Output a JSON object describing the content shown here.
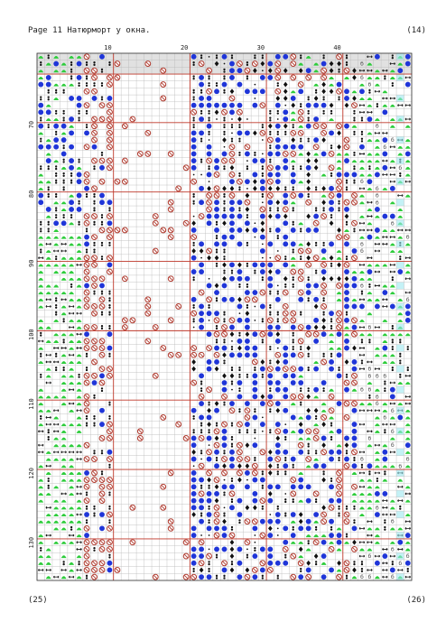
{
  "header": {
    "left": "Page 11  Натюрморт у окна.",
    "right": "(14)"
  },
  "footer": {
    "left": "(25)",
    "right": "(26)"
  },
  "grid": {
    "columns_total": 49,
    "rows_total": 76,
    "column_tick_labels": [
      "10",
      "20",
      "30",
      "40"
    ],
    "column_tick_values": [
      10,
      20,
      30,
      40
    ],
    "row_tick_labels": [
      "70",
      "80",
      "90",
      "100",
      "110",
      "120",
      "130"
    ],
    "row_tick_values": [
      70,
      80,
      90,
      100,
      110,
      120,
      130
    ],
    "first_row_number": 61,
    "first_column_number": 1,
    "legend_symbols": [
      "circle-blue",
      "circle-stop",
      "circle-black",
      "diamond",
      "double-dot",
      "arrow-down",
      "triangle-mound",
      "dot",
      "double-arrow",
      "letter-b"
    ]
  },
  "colors": {
    "grid_line": "#b9b9b9",
    "major_line": "#c0392b",
    "blue": "#1f35d8",
    "green": "#2ecc3c",
    "shade": "#c8c8c8",
    "brown": "#b03a2e",
    "cyan": "#9ce8f0"
  }
}
